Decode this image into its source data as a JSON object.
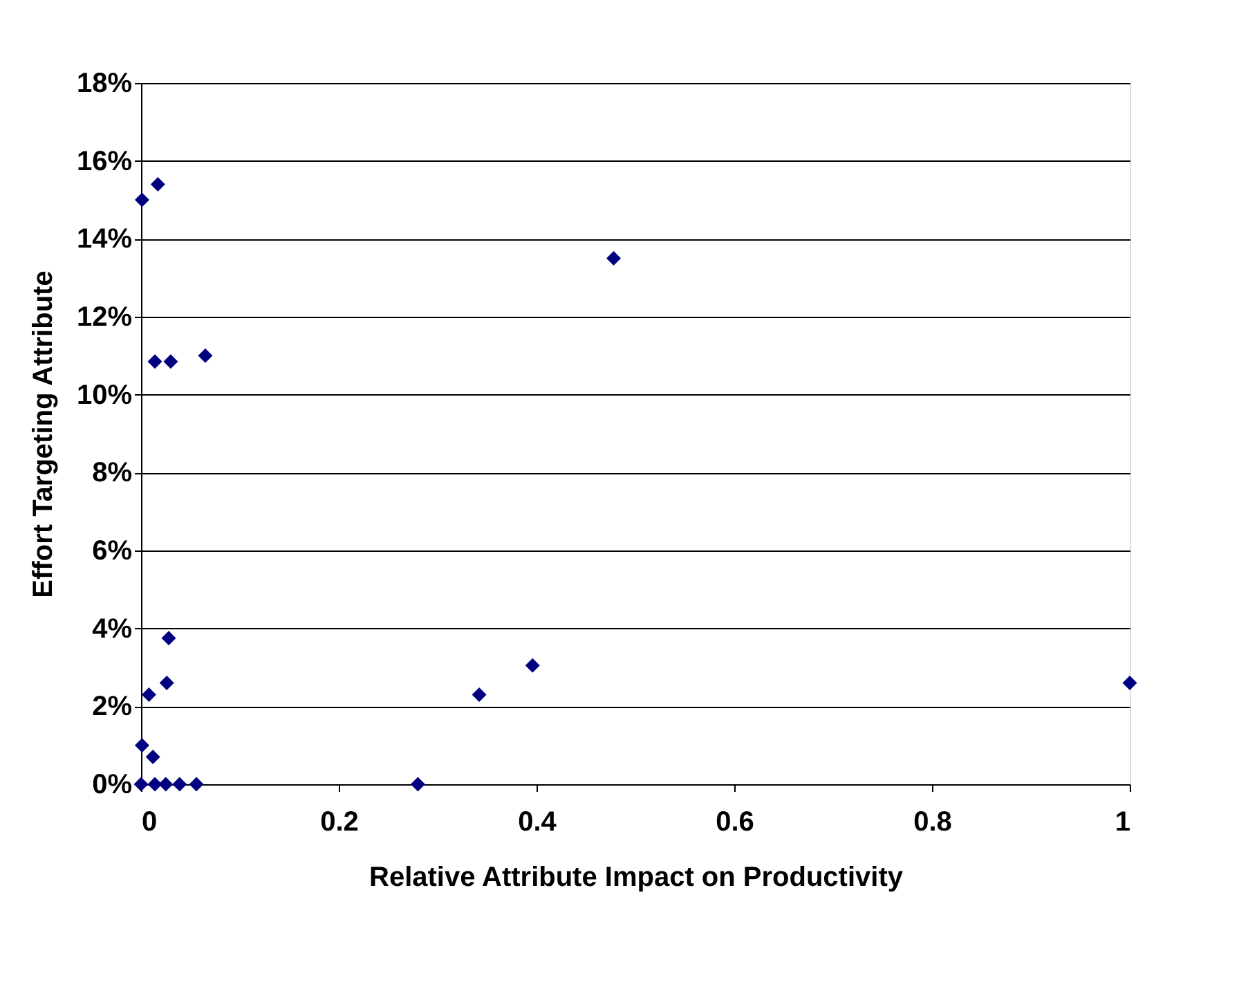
{
  "chart_data": {
    "type": "scatter",
    "xlabel": "Relative Attribute Impact on Productivity",
    "ylabel": "Effort Targeting Attribute",
    "marker": "diamond",
    "grid": "y",
    "legend": false,
    "xlim": [
      0,
      1
    ],
    "xticks": [
      0,
      0.2,
      0.4,
      0.6,
      0.8,
      1
    ],
    "ylim": [
      0,
      18
    ],
    "yticks": [
      {
        "value": 0,
        "label": "0%"
      },
      {
        "value": 2,
        "label": "2%"
      },
      {
        "value": 4,
        "label": "4%"
      },
      {
        "value": 6,
        "label": "6%"
      },
      {
        "value": 8,
        "label": "8%"
      },
      {
        "value": 10,
        "label": "10%"
      },
      {
        "value": 12,
        "label": "12%"
      },
      {
        "value": 14,
        "label": "14%"
      },
      {
        "value": 16,
        "label": "16%"
      },
      {
        "value": 18,
        "label": "18%"
      }
    ],
    "series": [
      {
        "color": "#000080",
        "x": [
          0.001,
          0.017,
          0.014,
          0.03,
          0.065,
          0.478,
          0.028,
          0.008,
          0.026,
          0.001,
          0.012,
          0.0,
          0.014,
          0.025,
          0.039,
          0.056,
          0.28,
          0.342,
          0.396,
          1.0
        ],
        "values": [
          15.0,
          15.4,
          10.85,
          10.85,
          11.0,
          13.5,
          3.75,
          2.3,
          2.6,
          1.0,
          0.7,
          0,
          0,
          0,
          0,
          0,
          0,
          2.3,
          3.05,
          2.6
        ]
      }
    ]
  }
}
